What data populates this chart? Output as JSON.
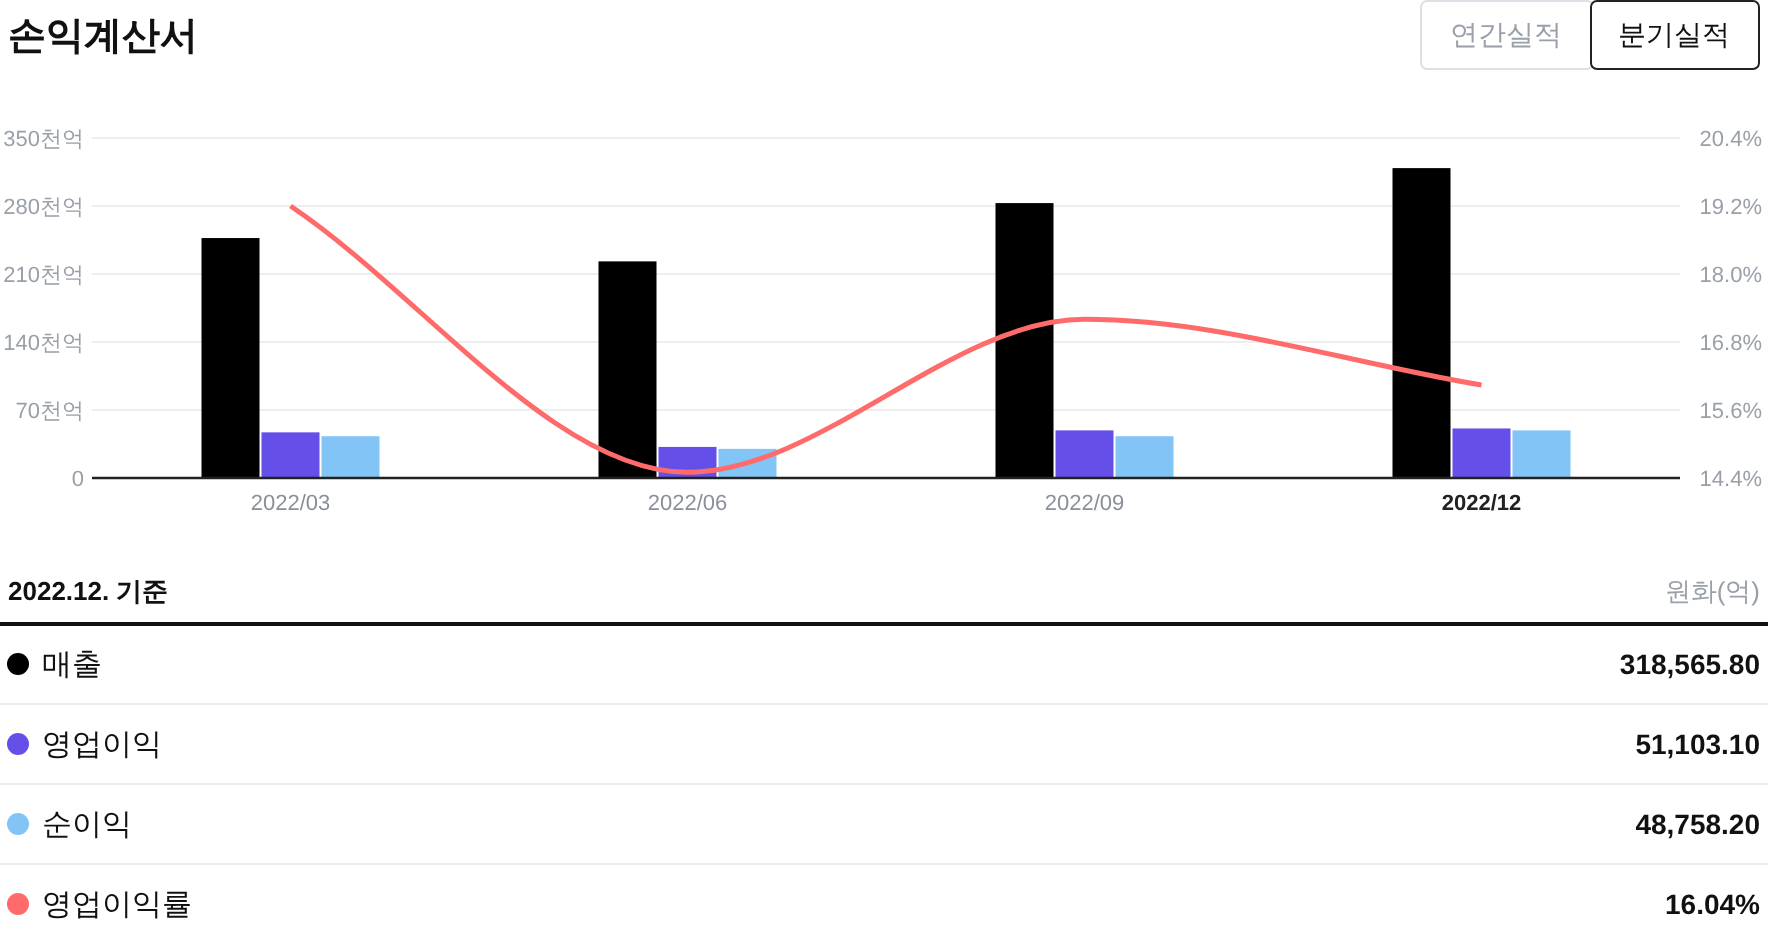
{
  "chart_data": {
    "type": "bar",
    "title": "손익계산서",
    "categories": [
      "2022/03",
      "2022/06",
      "2022/09",
      "2022/12"
    ],
    "ylim": [
      0,
      350
    ],
    "yticks": [
      0,
      {
        "value": 70,
        "label": "70천억"
      },
      {
        "value": 140,
        "label": "140천억"
      },
      {
        "value": 210,
        "label": "210천억"
      },
      {
        "value": 280,
        "label": "280천억"
      },
      {
        "value": 350,
        "label": "350천억"
      }
    ],
    "y2lim": [
      14.4,
      20.4
    ],
    "y2ticks": [
      {
        "value": 14.4,
        "label": "14.4%"
      },
      {
        "value": 15.6,
        "label": "15.6%"
      },
      {
        "value": 16.8,
        "label": "16.8%"
      },
      {
        "value": 18.0,
        "label": "18.0%"
      },
      {
        "value": 19.2,
        "label": "19.2%"
      },
      {
        "value": 20.4,
        "label": "20.4%"
      }
    ],
    "grid": "y",
    "legend": "bottom",
    "series": [
      {
        "name": "매출",
        "color": "#000000",
        "values": [
          247,
          223,
          283,
          319
        ]
      },
      {
        "name": "영업이익",
        "color": "#6450e8",
        "values": [
          47,
          32,
          49,
          51
        ]
      },
      {
        "name": "순이익",
        "color": "#82c4f5",
        "values": [
          43,
          30,
          43,
          49
        ]
      },
      {
        "name": "영업이익률",
        "type": "line",
        "axis": "y2",
        "color": "#ff6b6b",
        "values": [
          19.2,
          14.5,
          17.2,
          16.04
        ]
      }
    ],
    "annotations": [
      "2022.12. 기준",
      "원화(억)",
      "연간실적",
      "분기실적",
      "318,565.80",
      "51,103.10",
      "48,758.20",
      "16.04%"
    ]
  }
}
